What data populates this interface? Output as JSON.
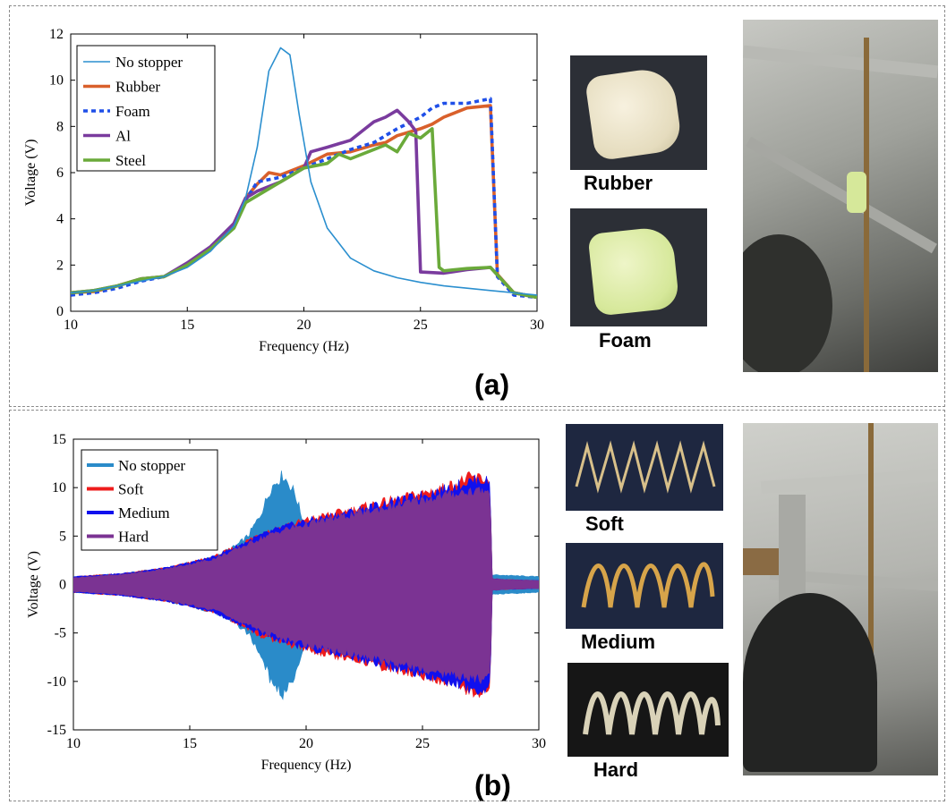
{
  "panel_a_tag": "(a)",
  "panel_b_tag": "(b)",
  "samples_a": {
    "rubber": "Rubber",
    "foam": "Foam"
  },
  "samples_b": {
    "soft": "Soft",
    "medium": "Medium",
    "hard": "Hard"
  },
  "chart_data": [
    {
      "type": "line",
      "xlabel": "Frequency (Hz)",
      "ylabel": "Voltage (V)",
      "xlim": [
        10,
        30
      ],
      "ylim": [
        0,
        12
      ],
      "xticks": [
        10,
        15,
        20,
        25,
        30
      ],
      "yticks": [
        0,
        2,
        4,
        6,
        8,
        10,
        12
      ],
      "grid": false,
      "legend_position": "top-left",
      "series": [
        {
          "name": "No stopper",
          "color": "#2b8fcf",
          "style": "solid",
          "x": [
            10,
            11,
            12,
            13,
            14,
            15,
            16,
            17,
            17.5,
            18,
            18.5,
            19,
            19.4,
            19.8,
            20.3,
            21,
            22,
            23,
            24,
            25,
            26,
            27,
            28,
            29,
            30
          ],
          "y": [
            0.8,
            0.9,
            1.1,
            1.3,
            1.5,
            1.9,
            2.6,
            3.7,
            4.9,
            7.1,
            10.4,
            11.4,
            11.1,
            8.5,
            5.6,
            3.6,
            2.3,
            1.75,
            1.45,
            1.25,
            1.1,
            1.0,
            0.9,
            0.8,
            0.7
          ]
        },
        {
          "name": "Rubber",
          "color": "#d9602b",
          "style": "solid",
          "x": [
            10,
            11,
            12,
            13,
            14,
            15,
            16,
            17,
            17.5,
            18,
            18.5,
            19,
            20,
            21,
            22,
            23,
            23.5,
            24,
            25,
            25.5,
            26,
            27,
            28,
            28.3,
            29,
            30
          ],
          "y": [
            0.8,
            0.85,
            1.1,
            1.4,
            1.5,
            2.0,
            2.7,
            3.8,
            4.9,
            5.5,
            6.0,
            5.9,
            6.3,
            6.8,
            6.9,
            7.2,
            7.3,
            7.6,
            7.9,
            8.1,
            8.4,
            8.8,
            8.9,
            1.6,
            0.8,
            0.6
          ]
        },
        {
          "name": "Foam",
          "color": "#1f4fe8",
          "style": "dashed",
          "x": [
            10,
            11,
            12,
            13,
            14,
            15,
            16,
            17,
            17.5,
            18,
            19,
            20,
            21,
            22,
            23,
            24,
            25,
            25.5,
            26,
            27,
            27.5,
            28,
            28.3,
            29,
            30
          ],
          "y": [
            0.7,
            0.8,
            1.0,
            1.3,
            1.5,
            2.0,
            2.7,
            3.7,
            4.8,
            5.6,
            5.8,
            6.2,
            6.6,
            7.0,
            7.3,
            7.9,
            8.4,
            8.8,
            9.0,
            9.0,
            9.1,
            9.2,
            1.5,
            0.7,
            0.6
          ]
        },
        {
          "name": "Al",
          "color": "#7a3b9e",
          "style": "solid",
          "x": [
            10,
            11,
            12,
            13,
            14,
            15,
            16,
            17,
            17.5,
            18,
            19,
            20,
            20.3,
            21,
            22,
            22.5,
            23,
            23.5,
            24,
            24.5,
            24.8,
            25,
            26,
            27,
            28,
            29,
            30
          ],
          "y": [
            0.8,
            0.9,
            1.1,
            1.4,
            1.5,
            2.1,
            2.8,
            3.8,
            4.9,
            5.2,
            5.6,
            6.2,
            6.9,
            7.1,
            7.4,
            7.8,
            8.2,
            8.4,
            8.7,
            8.2,
            7.8,
            1.7,
            1.65,
            1.8,
            1.9,
            0.8,
            0.6
          ]
        },
        {
          "name": "Steel",
          "color": "#6aaa3a",
          "style": "solid",
          "x": [
            10,
            11,
            12,
            13,
            14,
            15,
            16,
            17,
            17.5,
            18,
            19,
            20,
            21,
            21.5,
            22,
            23,
            23.5,
            24,
            24.5,
            25,
            25.5,
            25.8,
            26,
            27,
            28,
            29,
            30
          ],
          "y": [
            0.8,
            0.9,
            1.1,
            1.4,
            1.5,
            2.0,
            2.7,
            3.6,
            4.7,
            5.0,
            5.6,
            6.2,
            6.4,
            6.8,
            6.6,
            7.0,
            7.2,
            6.9,
            7.7,
            7.5,
            7.9,
            1.9,
            1.75,
            1.85,
            1.9,
            0.8,
            0.6
          ]
        }
      ]
    },
    {
      "type": "area",
      "xlabel": "Frequency (Hz)",
      "ylabel": "Voltage (V)",
      "xlim": [
        10,
        30
      ],
      "ylim": [
        -15,
        15
      ],
      "xticks": [
        10,
        15,
        20,
        25,
        30
      ],
      "yticks": [
        -15,
        -10,
        -5,
        0,
        5,
        10,
        15
      ],
      "grid": false,
      "legend_position": "top-left",
      "note_envelope": "symmetric voltage envelope (+/- amplitude)",
      "series": [
        {
          "name": "No stopper",
          "color": "#2a8bc9",
          "x": [
            10,
            12,
            14,
            16,
            17,
            17.5,
            18,
            18.5,
            19,
            19.5,
            20,
            21,
            22,
            24,
            26,
            28,
            30
          ],
          "amp": [
            0.8,
            1.1,
            1.7,
            2.8,
            4.0,
            5.0,
            7.0,
            10.0,
            11.3,
            9.5,
            5.6,
            4.0,
            2.8,
            1.9,
            1.3,
            1.0,
            0.8
          ]
        },
        {
          "name": "Soft",
          "color": "#ee1c1c",
          "x": [
            10,
            12,
            14,
            16,
            17,
            18,
            19,
            20,
            21,
            22,
            23,
            24,
            25,
            26,
            26.5,
            27,
            27.5,
            27.9,
            28,
            28.5,
            30
          ],
          "amp": [
            0.8,
            1.1,
            1.7,
            2.8,
            3.9,
            5.2,
            6.0,
            6.6,
            7.2,
            7.7,
            8.3,
            8.8,
            9.4,
            10.0,
            10.5,
            11.0,
            11.0,
            10.6,
            0.6,
            0.5,
            0.4
          ]
        },
        {
          "name": "Medium",
          "color": "#1010ee",
          "x": [
            10,
            12,
            14,
            16,
            17,
            18,
            19,
            20,
            21,
            22,
            23,
            24,
            25,
            26,
            26.5,
            27,
            27.5,
            27.9,
            28,
            28.5,
            30
          ],
          "amp": [
            0.8,
            1.1,
            1.7,
            2.8,
            3.9,
            5.0,
            5.9,
            6.5,
            7.0,
            7.5,
            8.1,
            8.6,
            9.2,
            9.8,
            10.2,
            10.6,
            10.8,
            10.5,
            0.6,
            0.5,
            0.4
          ]
        },
        {
          "name": "Hard",
          "color": "#7b3393",
          "x": [
            10,
            12,
            14,
            16,
            17,
            18,
            19,
            20,
            21,
            22,
            23,
            24,
            25,
            26,
            26.5,
            27,
            27.5,
            27.9,
            28,
            28.5,
            30
          ],
          "amp": [
            0.7,
            1.0,
            1.6,
            2.6,
            3.6,
            4.7,
            5.6,
            6.2,
            6.7,
            7.2,
            7.7,
            8.2,
            8.7,
            9.2,
            9.4,
            9.6,
            9.7,
            9.5,
            0.6,
            0.5,
            0.4
          ]
        }
      ]
    }
  ]
}
